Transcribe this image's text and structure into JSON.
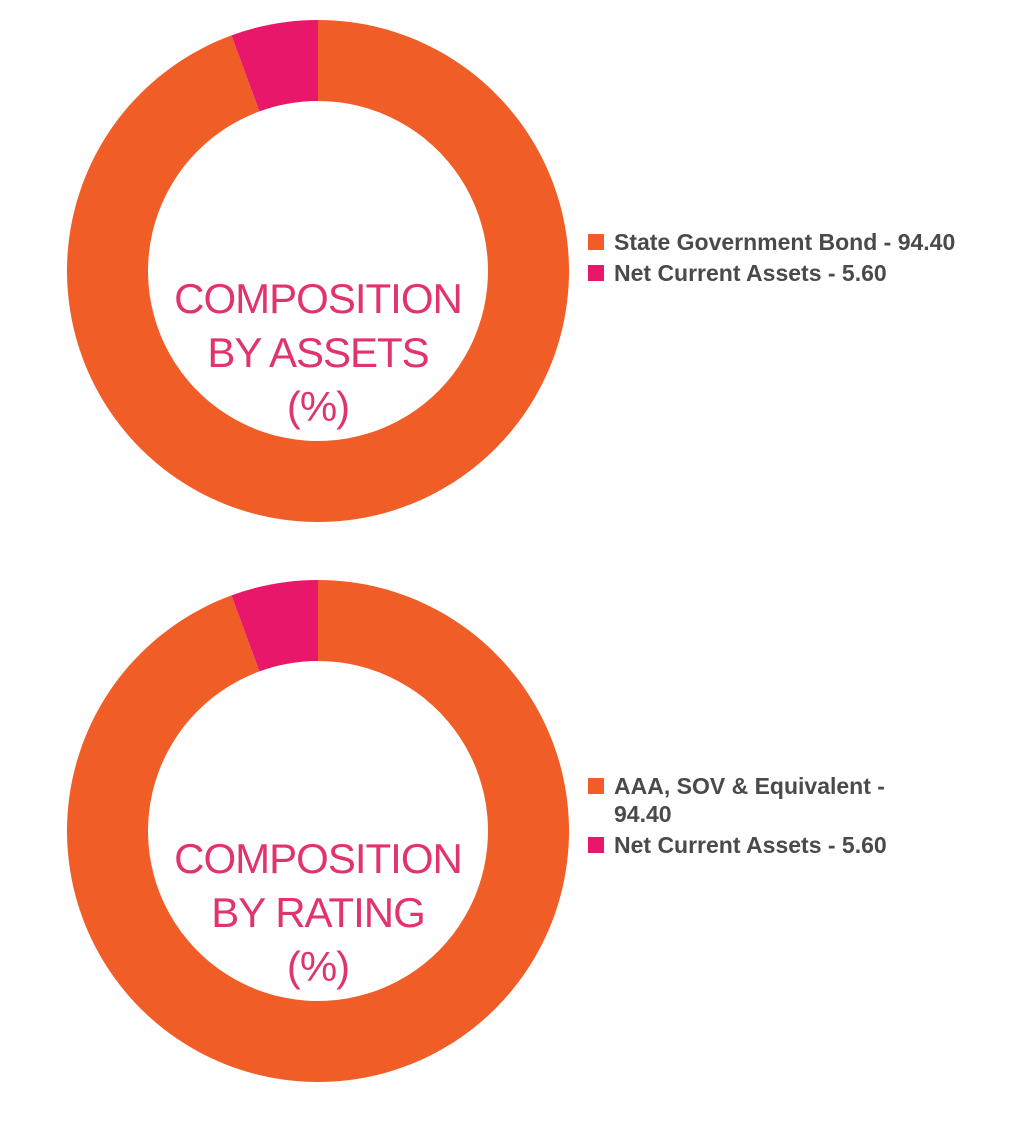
{
  "colors": {
    "primary": "#f15d27",
    "secondary": "#e8176a",
    "title": "#e0336f",
    "legend_text": "#4a4a4a"
  },
  "chart_data": [
    {
      "type": "pie",
      "variant": "donut",
      "title": "COMPOSITION BY ASSETS (%)",
      "title_lines": [
        "COMPOSITION",
        "BY ASSETS",
        "(%)"
      ],
      "categories": [
        "State Government Bond",
        "Net Current Assets"
      ],
      "values": [
        94.4,
        5.6
      ],
      "legend_labels": [
        "State Government Bond - 94.40",
        "Net Current Assets - 5.60"
      ],
      "legend_placement": "right"
    },
    {
      "type": "pie",
      "variant": "donut",
      "title": "COMPOSITION BY RATING (%)",
      "title_lines": [
        "COMPOSITION",
        "BY RATING",
        "(%)"
      ],
      "categories": [
        "AAA, SOV & Equivalent",
        "Net Current Assets"
      ],
      "values": [
        94.4,
        5.6
      ],
      "legend_labels": [
        "AAA, SOV & Equivalent - 94.40",
        "Net Current Assets - 5.60"
      ],
      "legend_placement": "right"
    }
  ]
}
